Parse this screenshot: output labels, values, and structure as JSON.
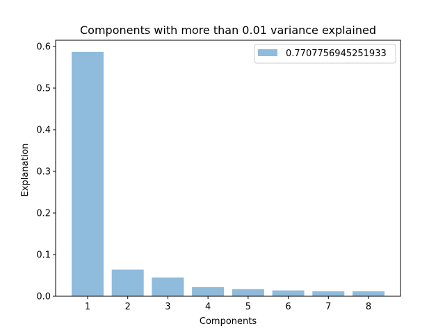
{
  "chart_data": {
    "type": "bar",
    "title": "Components with more than 0.01 variance explained",
    "xlabel": "Components",
    "ylabel": "Explanation",
    "categories": [
      "1",
      "2",
      "3",
      "4",
      "5",
      "6",
      "7",
      "8"
    ],
    "series": [
      {
        "name": "0.7707756945251933",
        "values": [
          0.587,
          0.064,
          0.045,
          0.022,
          0.017,
          0.014,
          0.012,
          0.012
        ]
      }
    ],
    "ylim": [
      0,
      0.615
    ],
    "yticks": [
      "0.0",
      "0.1",
      "0.2",
      "0.3",
      "0.4",
      "0.5",
      "0.6"
    ],
    "grid": false,
    "legend": "top-right",
    "bar_color": "#8fbbdc"
  }
}
